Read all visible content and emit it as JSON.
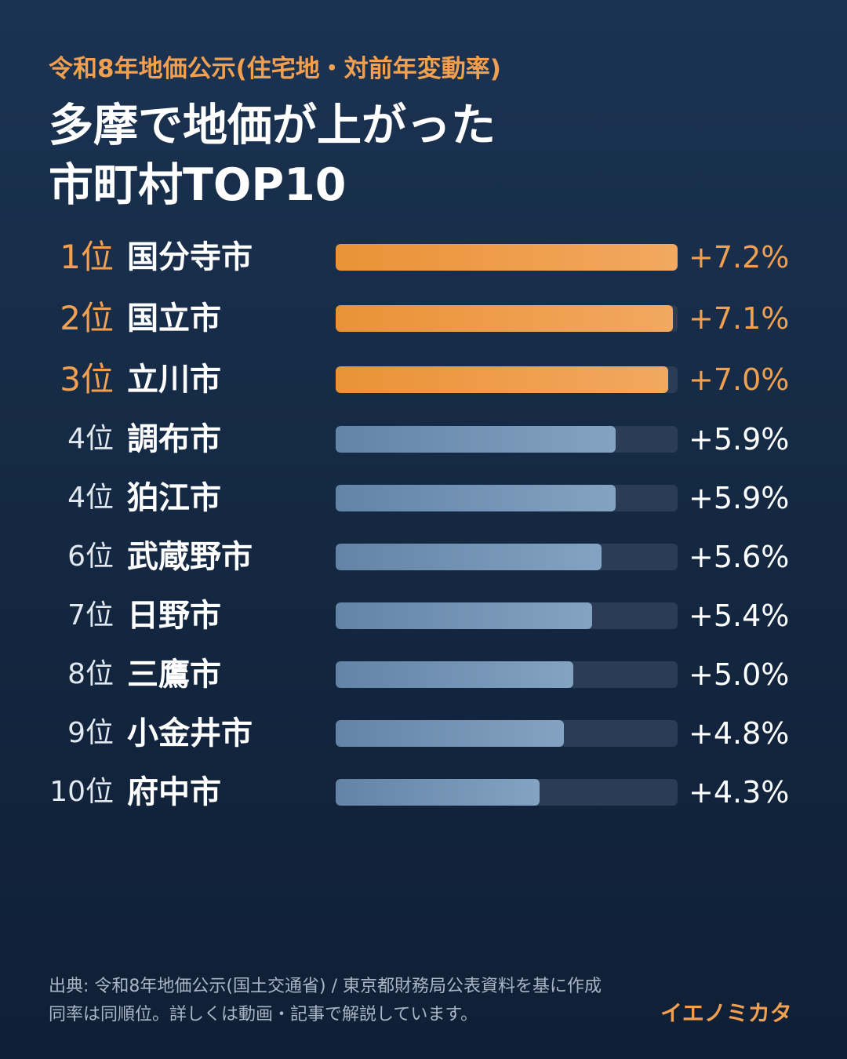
{
  "header": {
    "subtitle": "令和8年地価公示(住宅地・対前年変動率)",
    "title_line1": "多摩で地価が上がった",
    "title_line2": "市町村TOP10"
  },
  "chart_data": {
    "type": "bar",
    "orientation": "horizontal",
    "ranks": [
      "1位",
      "2位",
      "3位",
      "4位",
      "4位",
      "6位",
      "7位",
      "8位",
      "9位",
      "10位"
    ],
    "categories": [
      "国分寺市",
      "国立市",
      "立川市",
      "調布市",
      "狛江市",
      "武蔵野市",
      "日野市",
      "三鷹市",
      "小金井市",
      "府中市"
    ],
    "values": [
      7.2,
      7.1,
      7.0,
      5.9,
      5.9,
      5.6,
      5.4,
      5.0,
      4.8,
      4.3
    ],
    "value_labels": [
      "+7.2%",
      "+7.1%",
      "+7.0%",
      "+5.9%",
      "+5.9%",
      "+5.6%",
      "+5.4%",
      "+5.0%",
      "+4.8%",
      "+4.3%"
    ],
    "xlim": [
      0,
      7.2
    ],
    "highlight_count": 3,
    "highlight_color": "#ea9236",
    "base_color": "#6f8fb2",
    "track_color": "#2a3c56"
  },
  "footer": {
    "source_line": "出典: 令和8年地価公示(国土交通省) / 東京都財務局公表資料を基に作成",
    "note_line": "同率は同順位。詳しくは動画・記事で解説しています。",
    "brand": "イエノミカタ"
  },
  "colors": {
    "accent": "#f0a050",
    "background_top": "#1b3352",
    "background_bottom": "#0f1f35"
  }
}
